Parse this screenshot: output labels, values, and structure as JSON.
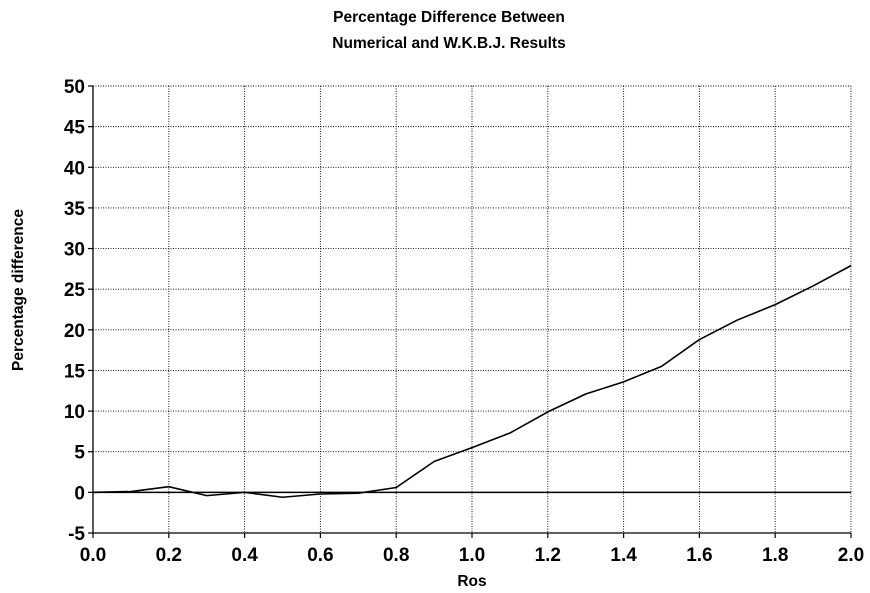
{
  "chart_data": {
    "type": "line",
    "title_lines": [
      "Percentage Difference Between",
      "Numerical and W.K.B.J. Results"
    ],
    "xlabel": "Ros",
    "ylabel": "Percentage difference",
    "xlim": [
      0.0,
      2.0
    ],
    "ylim": [
      -5,
      50
    ],
    "x_ticks": [
      0.0,
      0.2,
      0.4,
      0.6,
      0.8,
      1.0,
      1.2,
      1.4,
      1.6,
      1.8,
      2.0
    ],
    "x_tick_labels": [
      "0.0",
      "0.2",
      "0.4",
      "0.6",
      "0.8",
      "1.0",
      "1.2",
      "1.4",
      "1.6",
      "1.8",
      "2.0"
    ],
    "y_ticks": [
      -5,
      0,
      5,
      10,
      15,
      20,
      25,
      30,
      35,
      40,
      45,
      50
    ],
    "y_tick_labels": [
      "-5",
      "0",
      "5",
      "10",
      "15",
      "20",
      "25",
      "30",
      "35",
      "40",
      "45",
      "50"
    ],
    "grid": true,
    "legend": "none",
    "series": [
      {
        "x": [
          0.0,
          0.1,
          0.2,
          0.3,
          0.4,
          0.5,
          0.6,
          0.7,
          0.8,
          0.9,
          1.0,
          1.1,
          1.2,
          1.3,
          1.4,
          1.5,
          1.6,
          1.7,
          1.8,
          1.9,
          2.0
        ],
        "values": [
          0.0,
          0.1,
          0.7,
          -0.4,
          0.0,
          -0.6,
          -0.2,
          -0.1,
          0.6,
          3.8,
          5.5,
          7.3,
          9.9,
          12.1,
          13.6,
          15.5,
          18.8,
          21.2,
          23.1,
          25.4,
          27.9
        ],
        "color": "#000000"
      }
    ],
    "reference_line": {
      "y": 0
    }
  }
}
